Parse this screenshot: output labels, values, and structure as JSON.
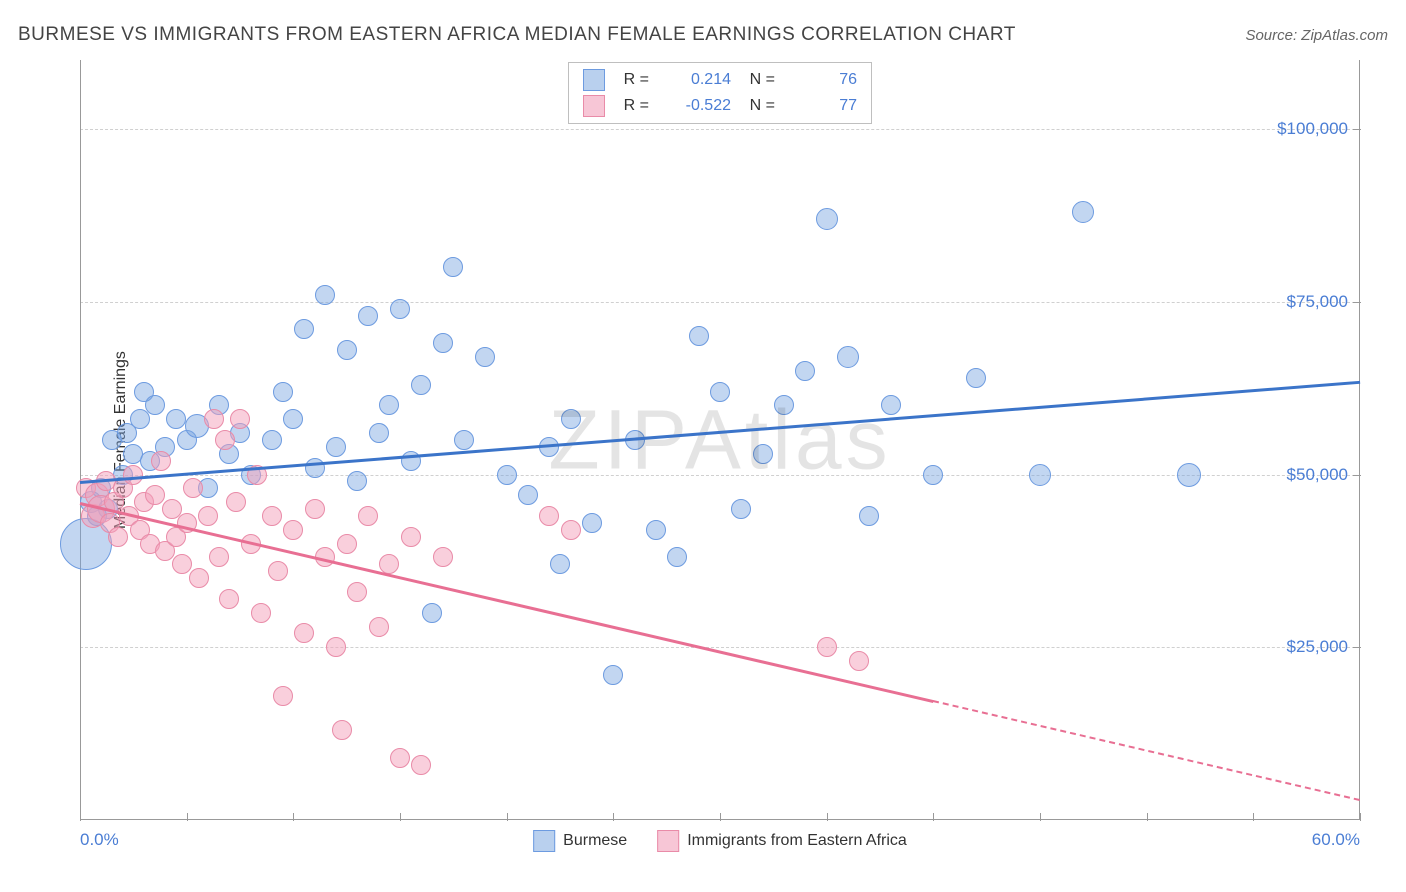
{
  "header": {
    "title": "BURMESE VS IMMIGRANTS FROM EASTERN AFRICA MEDIAN FEMALE EARNINGS CORRELATION CHART",
    "source": "Source: ZipAtlas.com"
  },
  "watermark": "ZIPAtlas",
  "chart": {
    "type": "scatter",
    "ylabel": "Median Female Earnings",
    "xlim": [
      0,
      60
    ],
    "ylim": [
      0,
      110000
    ],
    "x_ticks": [
      0,
      60
    ],
    "x_tick_labels": [
      "0.0%",
      "60.0%"
    ],
    "x_minor_ticks": [
      5,
      10,
      15,
      20,
      25,
      30,
      35,
      40,
      45,
      50,
      55
    ],
    "y_ticks": [
      25000,
      50000,
      75000,
      100000
    ],
    "y_tick_labels": [
      "$25,000",
      "$50,000",
      "$75,000",
      "$100,000"
    ],
    "grid_color": "#d0d0d0",
    "background_color": "#ffffff",
    "axis_color": "#999999",
    "tick_label_color": "#4a7dd4",
    "ylabel_fontsize": 16,
    "series": [
      {
        "name": "Burmese",
        "fill": "rgba(120,165,225,0.45)",
        "stroke": "#6d9be0",
        "line_color": "#3b74c9",
        "swatch_fill": "#b9d0ee",
        "swatch_border": "#6d9be0",
        "trend": {
          "x1": 0,
          "y1": 49000,
          "x2": 60,
          "y2": 63500,
          "dash_after_x": 60
        },
        "points": [
          {
            "x": 0.3,
            "y": 40000,
            "r": 26
          },
          {
            "x": 0.5,
            "y": 46000,
            "r": 11
          },
          {
            "x": 0.8,
            "y": 44000,
            "r": 10
          },
          {
            "x": 1.0,
            "y": 48000,
            "r": 10
          },
          {
            "x": 1.3,
            "y": 45000,
            "r": 10
          },
          {
            "x": 1.5,
            "y": 55000,
            "r": 10
          },
          {
            "x": 2.0,
            "y": 50000,
            "r": 10
          },
          {
            "x": 2.2,
            "y": 56000,
            "r": 10
          },
          {
            "x": 2.5,
            "y": 53000,
            "r": 10
          },
          {
            "x": 2.8,
            "y": 58000,
            "r": 10
          },
          {
            "x": 3.0,
            "y": 62000,
            "r": 10
          },
          {
            "x": 3.3,
            "y": 52000,
            "r": 10
          },
          {
            "x": 3.5,
            "y": 60000,
            "r": 10
          },
          {
            "x": 4.0,
            "y": 54000,
            "r": 10
          },
          {
            "x": 4.5,
            "y": 58000,
            "r": 10
          },
          {
            "x": 5.0,
            "y": 55000,
            "r": 10
          },
          {
            "x": 5.5,
            "y": 57000,
            "r": 12
          },
          {
            "x": 6.0,
            "y": 48000,
            "r": 10
          },
          {
            "x": 6.5,
            "y": 60000,
            "r": 10
          },
          {
            "x": 7.0,
            "y": 53000,
            "r": 10
          },
          {
            "x": 7.5,
            "y": 56000,
            "r": 10
          },
          {
            "x": 8.0,
            "y": 50000,
            "r": 10
          },
          {
            "x": 9.0,
            "y": 55000,
            "r": 10
          },
          {
            "x": 9.5,
            "y": 62000,
            "r": 10
          },
          {
            "x": 10.0,
            "y": 58000,
            "r": 10
          },
          {
            "x": 10.5,
            "y": 71000,
            "r": 10
          },
          {
            "x": 11.0,
            "y": 51000,
            "r": 10
          },
          {
            "x": 11.5,
            "y": 76000,
            "r": 10
          },
          {
            "x": 12.0,
            "y": 54000,
            "r": 10
          },
          {
            "x": 12.5,
            "y": 68000,
            "r": 10
          },
          {
            "x": 13.0,
            "y": 49000,
            "r": 10
          },
          {
            "x": 13.5,
            "y": 73000,
            "r": 10
          },
          {
            "x": 14.0,
            "y": 56000,
            "r": 10
          },
          {
            "x": 14.5,
            "y": 60000,
            "r": 10
          },
          {
            "x": 15.0,
            "y": 74000,
            "r": 10
          },
          {
            "x": 15.5,
            "y": 52000,
            "r": 10
          },
          {
            "x": 16.0,
            "y": 63000,
            "r": 10
          },
          {
            "x": 16.5,
            "y": 30000,
            "r": 10
          },
          {
            "x": 17.0,
            "y": 69000,
            "r": 10
          },
          {
            "x": 17.5,
            "y": 80000,
            "r": 10
          },
          {
            "x": 18.0,
            "y": 55000,
            "r": 10
          },
          {
            "x": 19.0,
            "y": 67000,
            "r": 10
          },
          {
            "x": 20.0,
            "y": 50000,
            "r": 10
          },
          {
            "x": 21.0,
            "y": 47000,
            "r": 10
          },
          {
            "x": 22.0,
            "y": 54000,
            "r": 10
          },
          {
            "x": 22.5,
            "y": 37000,
            "r": 10
          },
          {
            "x": 23.0,
            "y": 58000,
            "r": 10
          },
          {
            "x": 24.0,
            "y": 43000,
            "r": 10
          },
          {
            "x": 25.0,
            "y": 21000,
            "r": 10
          },
          {
            "x": 26.0,
            "y": 55000,
            "r": 10
          },
          {
            "x": 27.0,
            "y": 42000,
            "r": 10
          },
          {
            "x": 28.0,
            "y": 38000,
            "r": 10
          },
          {
            "x": 29.0,
            "y": 70000,
            "r": 10
          },
          {
            "x": 30.0,
            "y": 62000,
            "r": 10
          },
          {
            "x": 31.0,
            "y": 45000,
            "r": 10
          },
          {
            "x": 32.0,
            "y": 53000,
            "r": 10
          },
          {
            "x": 33.0,
            "y": 60000,
            "r": 10
          },
          {
            "x": 34.0,
            "y": 65000,
            "r": 10
          },
          {
            "x": 35.0,
            "y": 87000,
            "r": 11
          },
          {
            "x": 36.0,
            "y": 67000,
            "r": 11
          },
          {
            "x": 37.0,
            "y": 44000,
            "r": 10
          },
          {
            "x": 38.0,
            "y": 60000,
            "r": 10
          },
          {
            "x": 40.0,
            "y": 50000,
            "r": 10
          },
          {
            "x": 42.0,
            "y": 64000,
            "r": 10
          },
          {
            "x": 45.0,
            "y": 50000,
            "r": 11
          },
          {
            "x": 47.0,
            "y": 88000,
            "r": 11
          },
          {
            "x": 52.0,
            "y": 50000,
            "r": 12
          }
        ]
      },
      {
        "name": "Immigrants from Eastern Africa",
        "fill": "rgba(244,160,185,0.50)",
        "stroke": "#e98ba8",
        "line_color": "#e86f93",
        "swatch_fill": "#f7c6d6",
        "swatch_border": "#e98ba8",
        "trend": {
          "x1": 0,
          "y1": 46000,
          "x2": 60,
          "y2": 3000,
          "dash_after_x": 40
        },
        "points": [
          {
            "x": 0.3,
            "y": 48000,
            "r": 10
          },
          {
            "x": 0.6,
            "y": 44000,
            "r": 12
          },
          {
            "x": 0.8,
            "y": 47000,
            "r": 12
          },
          {
            "x": 1.0,
            "y": 45000,
            "r": 14
          },
          {
            "x": 1.2,
            "y": 49000,
            "r": 10
          },
          {
            "x": 1.4,
            "y": 43000,
            "r": 10
          },
          {
            "x": 1.6,
            "y": 46000,
            "r": 10
          },
          {
            "x": 1.8,
            "y": 41000,
            "r": 10
          },
          {
            "x": 2.0,
            "y": 48000,
            "r": 10
          },
          {
            "x": 2.3,
            "y": 44000,
            "r": 10
          },
          {
            "x": 2.5,
            "y": 50000,
            "r": 10
          },
          {
            "x": 2.8,
            "y": 42000,
            "r": 10
          },
          {
            "x": 3.0,
            "y": 46000,
            "r": 10
          },
          {
            "x": 3.3,
            "y": 40000,
            "r": 10
          },
          {
            "x": 3.5,
            "y": 47000,
            "r": 10
          },
          {
            "x": 3.8,
            "y": 52000,
            "r": 10
          },
          {
            "x": 4.0,
            "y": 39000,
            "r": 10
          },
          {
            "x": 4.3,
            "y": 45000,
            "r": 10
          },
          {
            "x": 4.5,
            "y": 41000,
            "r": 10
          },
          {
            "x": 4.8,
            "y": 37000,
            "r": 10
          },
          {
            "x": 5.0,
            "y": 43000,
            "r": 10
          },
          {
            "x": 5.3,
            "y": 48000,
            "r": 10
          },
          {
            "x": 5.6,
            "y": 35000,
            "r": 10
          },
          {
            "x": 6.0,
            "y": 44000,
            "r": 10
          },
          {
            "x": 6.3,
            "y": 58000,
            "r": 10
          },
          {
            "x": 6.5,
            "y": 38000,
            "r": 10
          },
          {
            "x": 6.8,
            "y": 55000,
            "r": 10
          },
          {
            "x": 7.0,
            "y": 32000,
            "r": 10
          },
          {
            "x": 7.3,
            "y": 46000,
            "r": 10
          },
          {
            "x": 7.5,
            "y": 58000,
            "r": 10
          },
          {
            "x": 8.0,
            "y": 40000,
            "r": 10
          },
          {
            "x": 8.3,
            "y": 50000,
            "r": 10
          },
          {
            "x": 8.5,
            "y": 30000,
            "r": 10
          },
          {
            "x": 9.0,
            "y": 44000,
            "r": 10
          },
          {
            "x": 9.3,
            "y": 36000,
            "r": 10
          },
          {
            "x": 9.5,
            "y": 18000,
            "r": 10
          },
          {
            "x": 10.0,
            "y": 42000,
            "r": 10
          },
          {
            "x": 10.5,
            "y": 27000,
            "r": 10
          },
          {
            "x": 11.0,
            "y": 45000,
            "r": 10
          },
          {
            "x": 11.5,
            "y": 38000,
            "r": 10
          },
          {
            "x": 12.0,
            "y": 25000,
            "r": 10
          },
          {
            "x": 12.3,
            "y": 13000,
            "r": 10
          },
          {
            "x": 12.5,
            "y": 40000,
            "r": 10
          },
          {
            "x": 13.0,
            "y": 33000,
            "r": 10
          },
          {
            "x": 13.5,
            "y": 44000,
            "r": 10
          },
          {
            "x": 14.0,
            "y": 28000,
            "r": 10
          },
          {
            "x": 14.5,
            "y": 37000,
            "r": 10
          },
          {
            "x": 15.0,
            "y": 9000,
            "r": 10
          },
          {
            "x": 15.5,
            "y": 41000,
            "r": 10
          },
          {
            "x": 16.0,
            "y": 8000,
            "r": 10
          },
          {
            "x": 17.0,
            "y": 38000,
            "r": 10
          },
          {
            "x": 22.0,
            "y": 44000,
            "r": 10
          },
          {
            "x": 23.0,
            "y": 42000,
            "r": 10
          },
          {
            "x": 35.0,
            "y": 25000,
            "r": 10
          },
          {
            "x": 36.5,
            "y": 23000,
            "r": 10
          }
        ]
      }
    ],
    "legend_top": [
      {
        "series_index": 0,
        "r": "0.214",
        "n": "76"
      },
      {
        "series_index": 1,
        "r": "-0.522",
        "n": "77"
      }
    ],
    "legend_top_labels": {
      "r": "R  =",
      "n": "N  ="
    }
  }
}
